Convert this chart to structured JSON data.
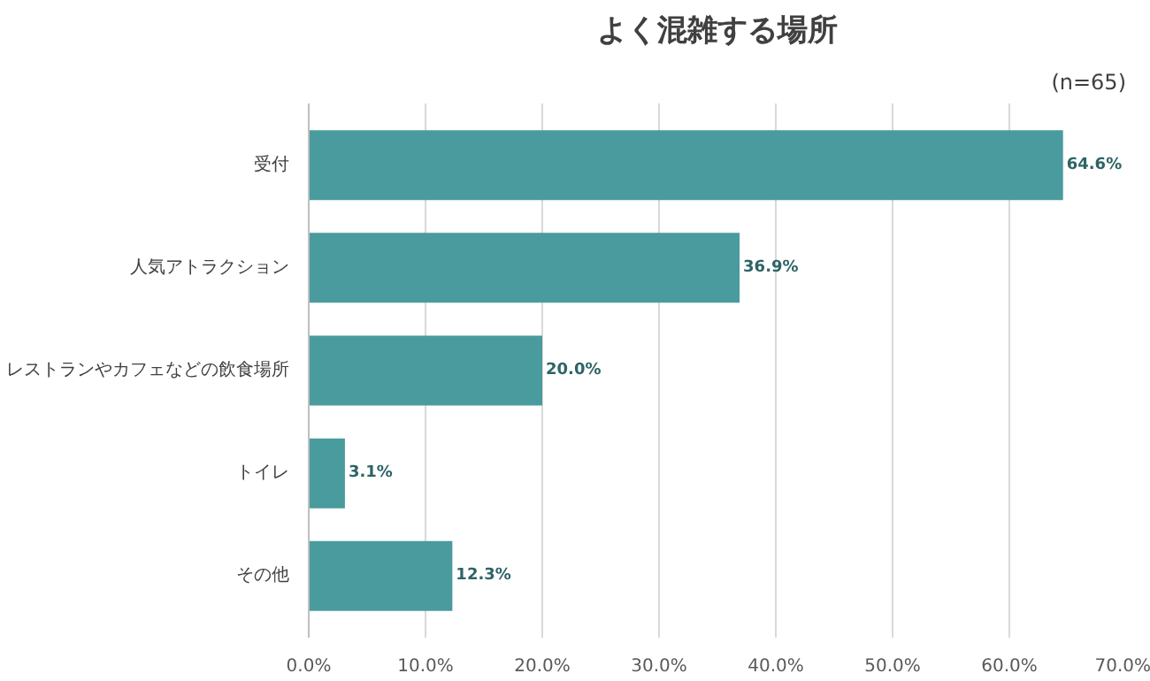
{
  "chart_data": {
    "type": "bar",
    "orientation": "horizontal",
    "title": "よく混雑する場所",
    "subtitle": "(n=65)",
    "categories": [
      "受付",
      "人気アトラクション",
      "レストランやカフェなどの飲食場所",
      "トイレ",
      "その他"
    ],
    "values": [
      64.6,
      36.9,
      20.0,
      3.1,
      12.3
    ],
    "value_labels": [
      "64.6%",
      "36.9%",
      "20.0%",
      "3.1%",
      "12.3%"
    ],
    "color": "#4a9b9d",
    "xlim": [
      0,
      70
    ],
    "xticks": [
      {
        "value": 0,
        "label": "0.0%"
      },
      {
        "value": 10,
        "label": "10.0%"
      },
      {
        "value": 20,
        "label": "20.0%"
      },
      {
        "value": 30,
        "label": "30.0%"
      },
      {
        "value": 40,
        "label": "40.0%"
      },
      {
        "value": 50,
        "label": "50.0%"
      },
      {
        "value": 60,
        "label": "60.0%"
      },
      {
        "value": 70,
        "label": "70.0%"
      }
    ],
    "grid": "x"
  }
}
